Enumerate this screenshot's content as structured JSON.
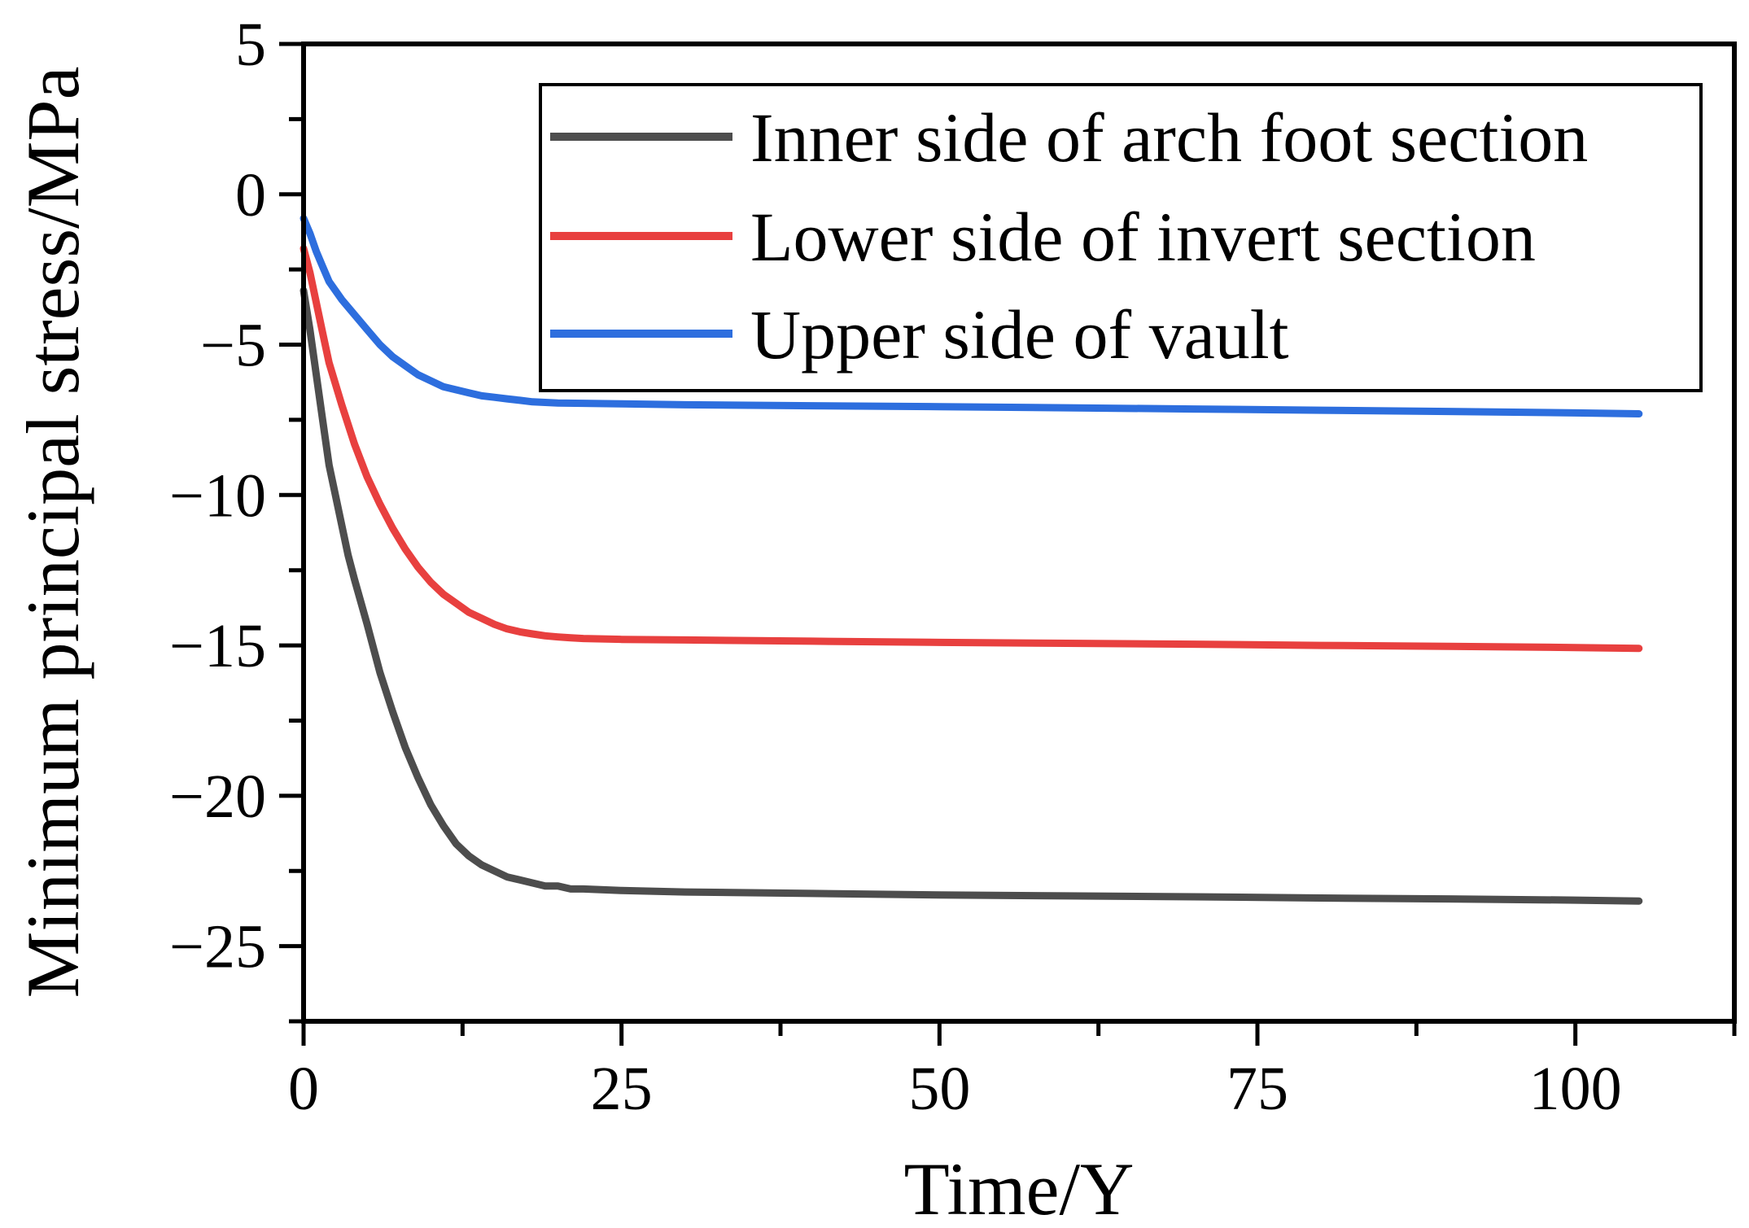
{
  "chart_data": {
    "type": "line",
    "title": "",
    "xlabel": "Time/Y",
    "ylabel": "Minimum principal stress/MPa",
    "xlim": [
      0,
      112.5
    ],
    "ylim": [
      -27.5,
      5
    ],
    "x_ticks": [
      0,
      25,
      50,
      75,
      100
    ],
    "x_tick_labels": [
      "0",
      "25",
      "50",
      "75",
      "100"
    ],
    "y_ticks": [
      5,
      0,
      -5,
      -10,
      -15,
      -20,
      -25
    ],
    "y_tick_labels": [
      "5",
      "0",
      "−5",
      "−10",
      "−15",
      "−20",
      "−25"
    ],
    "grid": false,
    "legend_position": "top-right",
    "series": [
      {
        "name": "Inner side of arch foot section",
        "color": "#4d4d4d",
        "x": [
          0,
          0.5,
          1,
          1.5,
          2,
          2.5,
          3,
          3.5,
          4,
          5,
          6,
          7,
          8,
          9,
          10,
          11,
          12,
          13,
          14,
          15,
          16,
          17,
          18,
          19,
          20,
          21,
          22,
          25,
          30,
          40,
          50,
          60,
          70,
          80,
          90,
          100,
          105
        ],
        "values": [
          -3.2,
          -4.5,
          -6.0,
          -7.5,
          -9.0,
          -10.0,
          -11.0,
          -12.0,
          -12.8,
          -14.3,
          -15.9,
          -17.2,
          -18.4,
          -19.4,
          -20.3,
          -21.0,
          -21.6,
          -22.0,
          -22.3,
          -22.5,
          -22.7,
          -22.8,
          -22.9,
          -23.0,
          -23.0,
          -23.1,
          -23.1,
          -23.15,
          -23.2,
          -23.25,
          -23.3,
          -23.33,
          -23.36,
          -23.4,
          -23.43,
          -23.47,
          -23.5
        ]
      },
      {
        "name": "Lower side of invert section",
        "color": "#e8403f",
        "x": [
          0,
          0.5,
          1,
          1.5,
          2,
          3,
          4,
          5,
          6,
          7,
          8,
          9,
          10,
          11,
          12,
          13,
          14,
          15,
          16,
          17,
          18,
          19,
          20,
          21,
          22,
          25,
          30,
          40,
          50,
          60,
          70,
          80,
          90,
          100,
          105
        ],
        "values": [
          -1.8,
          -2.6,
          -3.6,
          -4.6,
          -5.6,
          -7.0,
          -8.3,
          -9.4,
          -10.3,
          -11.1,
          -11.8,
          -12.4,
          -12.9,
          -13.3,
          -13.6,
          -13.9,
          -14.1,
          -14.3,
          -14.45,
          -14.55,
          -14.62,
          -14.68,
          -14.72,
          -14.75,
          -14.77,
          -14.8,
          -14.82,
          -14.86,
          -14.9,
          -14.93,
          -14.96,
          -15.0,
          -15.03,
          -15.07,
          -15.1
        ]
      },
      {
        "name": "Upper side of vault",
        "color": "#2d6ede",
        "x": [
          0,
          0.5,
          1,
          1.5,
          2,
          3,
          4,
          5,
          6,
          7,
          8,
          9,
          10,
          11,
          12,
          13,
          14,
          15,
          16,
          17,
          18,
          19,
          20,
          22,
          25,
          30,
          40,
          50,
          60,
          70,
          80,
          90,
          100,
          105
        ],
        "values": [
          -0.8,
          -1.3,
          -1.9,
          -2.4,
          -2.9,
          -3.5,
          -4.0,
          -4.5,
          -5.0,
          -5.4,
          -5.7,
          -6.0,
          -6.2,
          -6.4,
          -6.5,
          -6.6,
          -6.7,
          -6.75,
          -6.8,
          -6.85,
          -6.9,
          -6.92,
          -6.94,
          -6.95,
          -6.97,
          -7.0,
          -7.03,
          -7.06,
          -7.1,
          -7.14,
          -7.18,
          -7.22,
          -7.27,
          -7.3
        ]
      }
    ]
  }
}
